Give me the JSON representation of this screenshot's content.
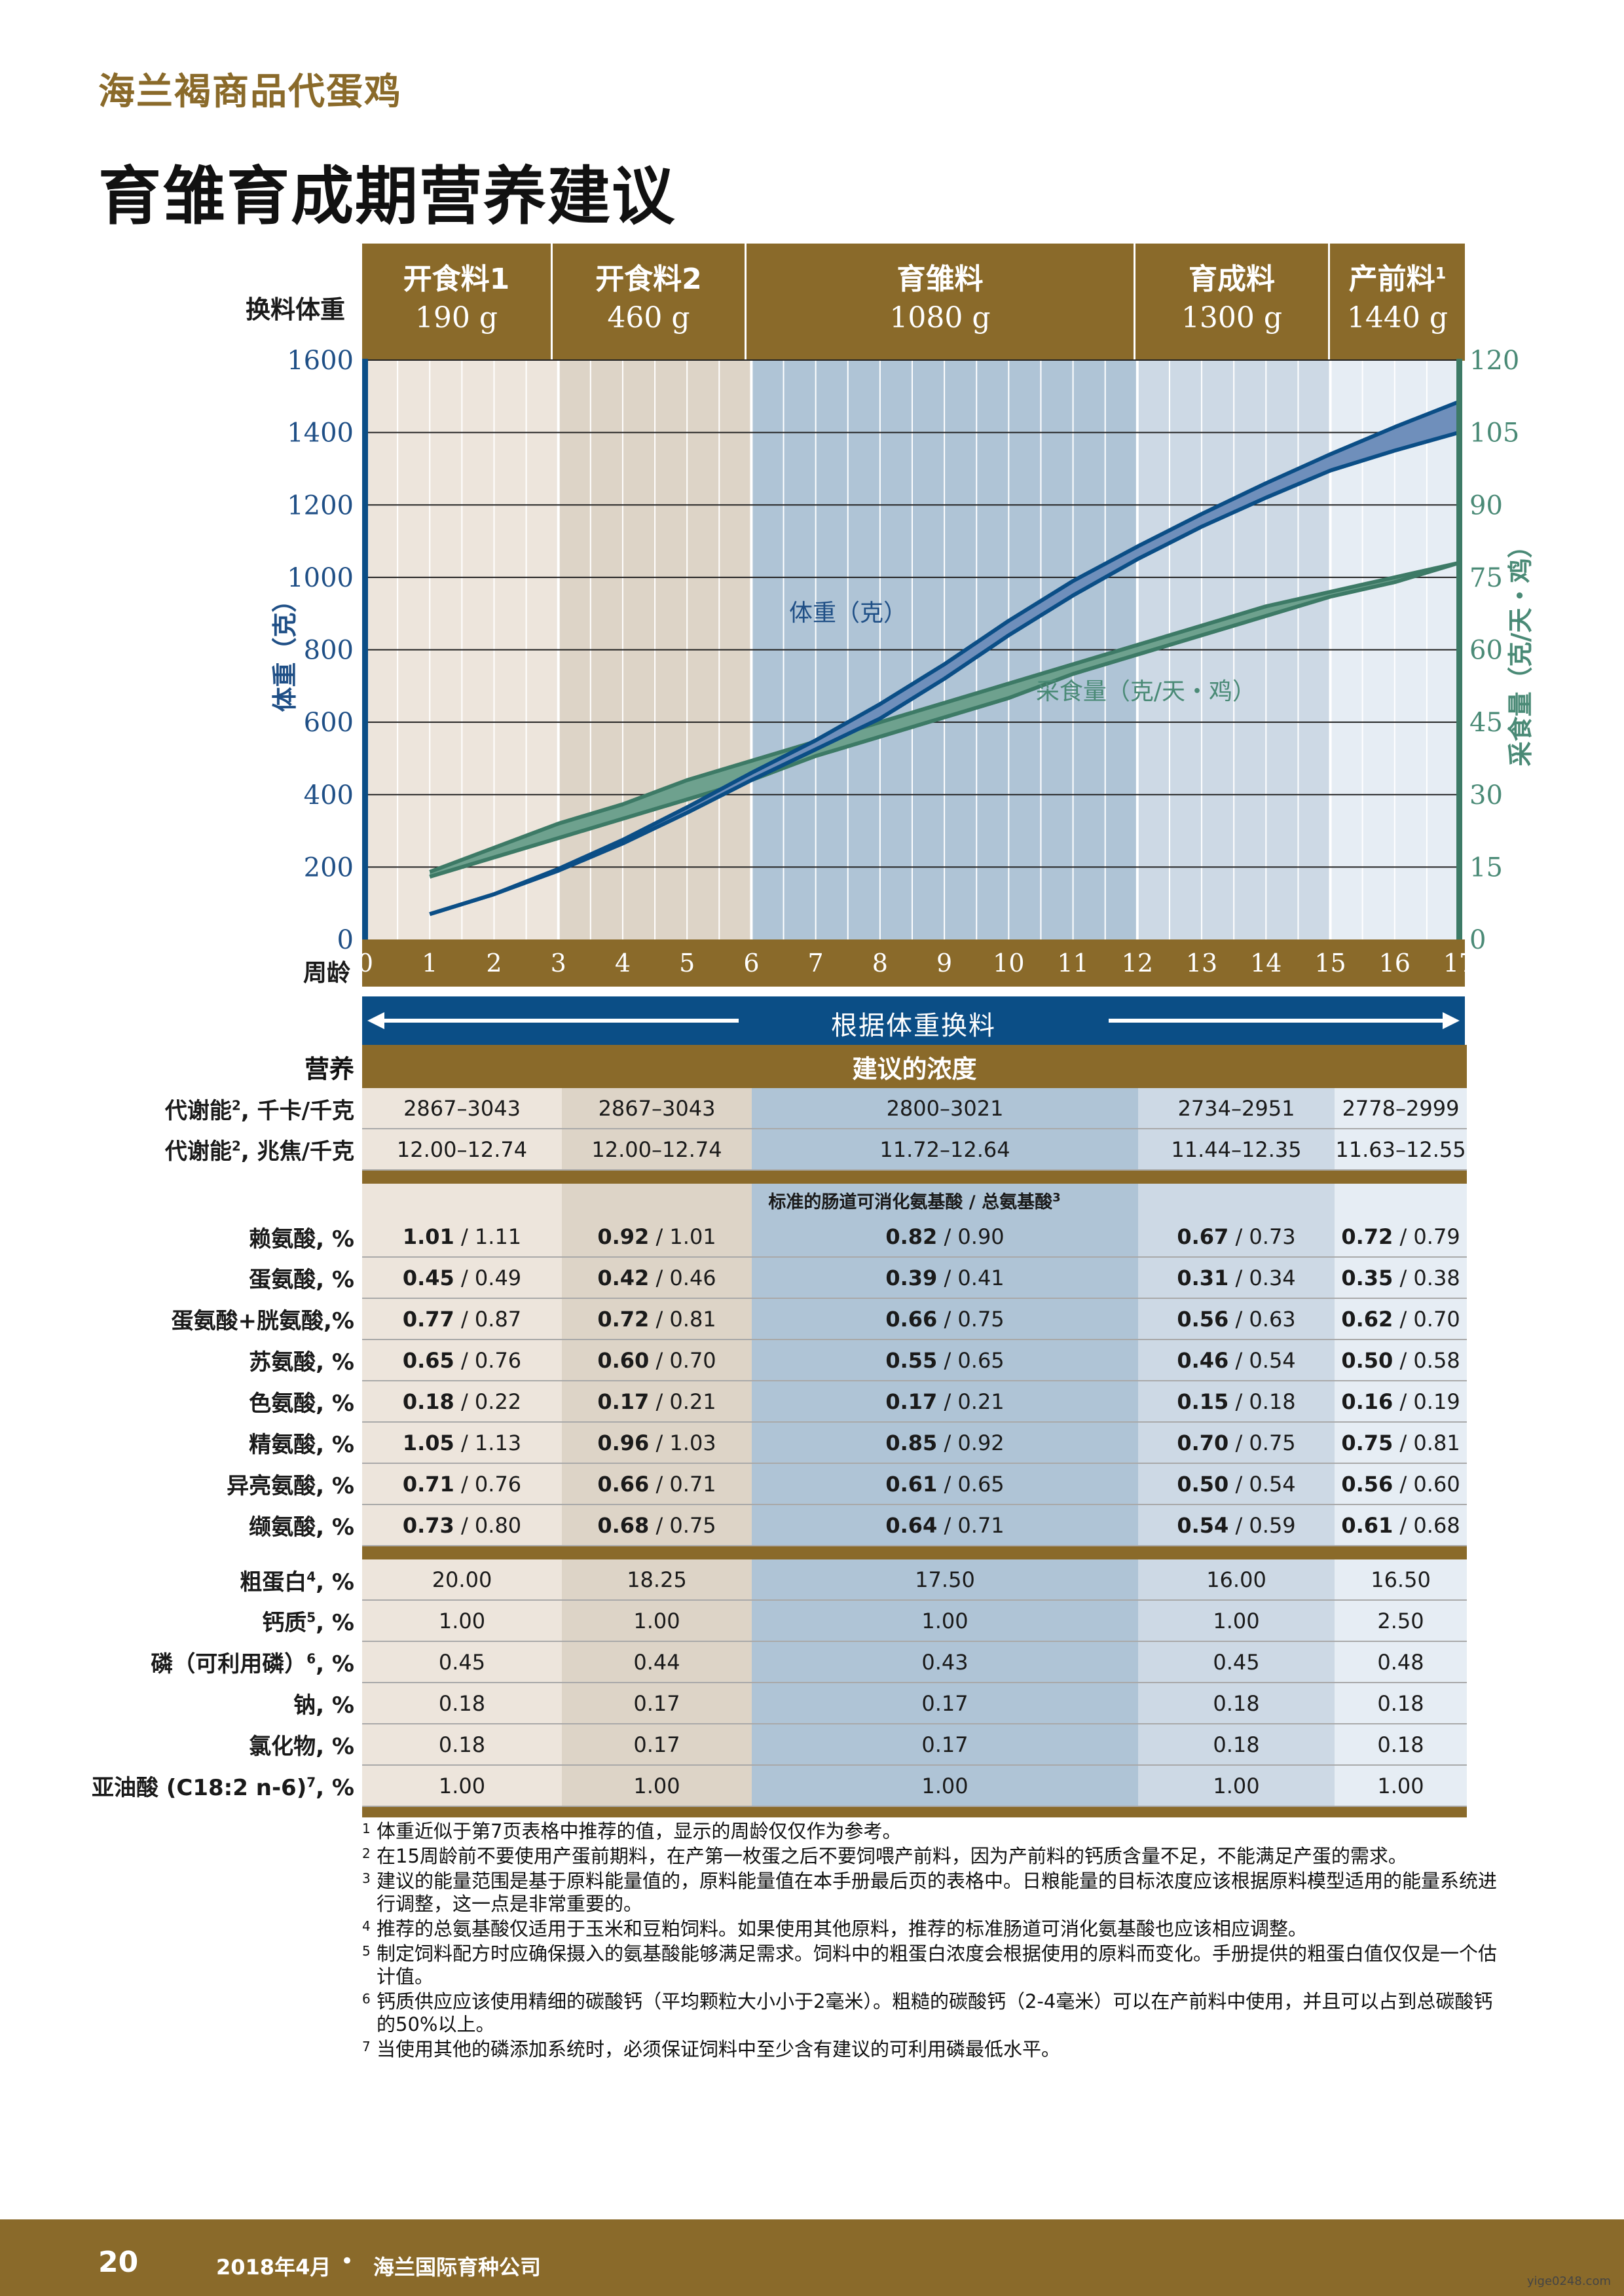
{
  "header": {
    "brand": "海兰褐商品代蛋鸡",
    "title": "育雏育成期营养建议"
  },
  "stages": [
    {
      "name": "开食料1",
      "weight": "190 g"
    },
    {
      "name": "开食料2",
      "weight": "460 g"
    },
    {
      "name": "育雏料",
      "weight": "1080 g"
    },
    {
      "name": "育成料",
      "weight": "1300 g"
    },
    {
      "name": "产前料",
      "sup": "1",
      "weight": "1440 g"
    }
  ],
  "labels": {
    "weight_change": "换料体重",
    "age": "周龄",
    "banner": "根据体重换料",
    "nutrition": "营养",
    "recommended": "建议的浓度",
    "amino_header": "标准的肠道可消化氨基酸 / 总氨基酸",
    "amino_header_sup": "3"
  },
  "chart_data": {
    "type": "line",
    "xlabel": "周龄",
    "x_ticks": [
      0,
      1,
      2,
      3,
      4,
      5,
      6,
      7,
      8,
      9,
      10,
      11,
      12,
      13,
      14,
      15,
      16,
      17
    ],
    "y_left": {
      "label": "体重（克）",
      "ticks": [
        0,
        200,
        400,
        600,
        800,
        1000,
        1200,
        1400,
        1600
      ],
      "range": [
        0,
        1600
      ]
    },
    "y_right": {
      "label": "采食量（克/天・鸡）",
      "ticks": [
        0,
        15,
        30,
        45,
        60,
        75,
        90,
        105,
        120
      ],
      "range": [
        0,
        120
      ]
    },
    "series": [
      {
        "name": "体重（克）",
        "axis": "left",
        "color": "#0b4e86",
        "x": [
          1,
          2,
          3,
          4,
          5,
          6,
          7,
          8,
          9,
          10,
          11,
          12,
          13,
          14,
          15,
          16,
          17
        ],
        "lower": [
          70,
          125,
          190,
          265,
          350,
          440,
          525,
          610,
          720,
          840,
          950,
          1050,
          1140,
          1220,
          1295,
          1350,
          1400
        ],
        "upper": [
          70,
          125,
          195,
          275,
          365,
          460,
          550,
          650,
          760,
          880,
          990,
          1085,
          1175,
          1260,
          1340,
          1415,
          1485
        ]
      },
      {
        "name": "采食量（克/天・鸡）",
        "axis": "right",
        "color": "#3d7a66",
        "x": [
          1,
          2,
          3,
          4,
          5,
          6,
          7,
          8,
          9,
          10,
          11,
          12,
          13,
          14,
          15,
          16,
          17
        ],
        "lower": [
          13,
          17,
          21,
          25,
          29,
          33,
          38,
          42,
          46,
          50,
          55,
          59,
          63,
          67,
          71,
          74,
          78
        ],
        "upper": [
          14,
          19,
          24,
          28,
          33,
          37,
          41,
          45,
          49,
          53,
          57,
          61,
          65,
          69,
          72,
          75,
          78
        ]
      }
    ]
  },
  "table": {
    "groups": [
      {
        "type": "rows",
        "rows": [
          {
            "label": "代谢能",
            "sup": "2",
            "suffix": ", 千卡/千克",
            "values": [
              "2867–3043",
              "2867–3043",
              "2800–3021",
              "2734–2951",
              "2778–2999"
            ]
          },
          {
            "label": "代谢能",
            "sup": "2",
            "suffix": ", 兆焦/千克",
            "values": [
              "12.00–12.74",
              "12.00–12.74",
              "11.72–12.64",
              "11.44–12.35",
              "11.63–12.55"
            ]
          }
        ]
      },
      {
        "type": "sep"
      },
      {
        "type": "subheader"
      },
      {
        "type": "pairs",
        "rows": [
          {
            "label": "赖氨酸, %",
            "bold": [
              "1.01",
              "0.92",
              "0.82",
              "0.67",
              "0.72"
            ],
            "rest": [
              "1.11",
              "1.01",
              "0.90",
              "0.73",
              "0.79"
            ]
          },
          {
            "label": "蛋氨酸, %",
            "bold": [
              "0.45",
              "0.42",
              "0.39",
              "0.31",
              "0.35"
            ],
            "rest": [
              "0.49",
              "0.46",
              "0.41",
              "0.34",
              "0.38"
            ]
          },
          {
            "label": "蛋氨酸+胱氨酸,%",
            "bold": [
              "0.77",
              "0.72",
              "0.66",
              "0.56",
              "0.62"
            ],
            "rest": [
              "0.87",
              "0.81",
              "0.75",
              "0.63",
              "0.70"
            ]
          },
          {
            "label": "苏氨酸, %",
            "bold": [
              "0.65",
              "0.60",
              "0.55",
              "0.46",
              "0.50"
            ],
            "rest": [
              "0.76",
              "0.70",
              "0.65",
              "0.54",
              "0.58"
            ]
          },
          {
            "label": "色氨酸, %",
            "bold": [
              "0.18",
              "0.17",
              "0.17",
              "0.15",
              "0.16"
            ],
            "rest": [
              "0.22",
              "0.21",
              "0.21",
              "0.18",
              "0.19"
            ]
          },
          {
            "label": "精氨酸, %",
            "bold": [
              "1.05",
              "0.96",
              "0.85",
              "0.70",
              "0.75"
            ],
            "rest": [
              "1.13",
              "1.03",
              "0.92",
              "0.75",
              "0.81"
            ]
          },
          {
            "label": "异亮氨酸, %",
            "bold": [
              "0.71",
              "0.66",
              "0.61",
              "0.50",
              "0.56"
            ],
            "rest": [
              "0.76",
              "0.71",
              "0.65",
              "0.54",
              "0.60"
            ]
          },
          {
            "label": "缬氨酸, %",
            "bold": [
              "0.73",
              "0.68",
              "0.64",
              "0.54",
              "0.61"
            ],
            "rest": [
              "0.80",
              "0.75",
              "0.71",
              "0.59",
              "0.68"
            ]
          }
        ]
      },
      {
        "type": "sep"
      },
      {
        "type": "rows",
        "rows": [
          {
            "label": "粗蛋白",
            "sup": "4",
            "suffix": ", %",
            "values": [
              "20.00",
              "18.25",
              "17.50",
              "16.00",
              "16.50"
            ]
          },
          {
            "label": "钙质",
            "sup": "5",
            "suffix": ", %",
            "values": [
              "1.00",
              "1.00",
              "1.00",
              "1.00",
              "2.50"
            ]
          },
          {
            "label": "磷（可利用磷）",
            "sup": "6",
            "suffix": ", %",
            "values": [
              "0.45",
              "0.44",
              "0.43",
              "0.45",
              "0.48"
            ]
          },
          {
            "label": "钠, %",
            "values": [
              "0.18",
              "0.17",
              "0.17",
              "0.18",
              "0.18"
            ]
          },
          {
            "label": "氯化物, %",
            "values": [
              "0.18",
              "0.17",
              "0.17",
              "0.18",
              "0.18"
            ]
          },
          {
            "label": "亚油酸 (C18:2 n-6)",
            "sup": "7",
            "suffix": ", %",
            "values": [
              "1.00",
              "1.00",
              "1.00",
              "1.00",
              "1.00"
            ]
          }
        ]
      },
      {
        "type": "sep",
        "thin": true
      }
    ]
  },
  "footnotes": [
    {
      "n": "1",
      "text": "体重近似于第7页表格中推荐的值，显示的周龄仅仅作为参考。"
    },
    {
      "n": "2",
      "text": "在15周龄前不要使用产蛋前期料，在产第一枚蛋之后不要饲喂产前料，因为产前料的钙质含量不足，不能满足产蛋的需求。"
    },
    {
      "n": "3",
      "text": "建议的能量范围是基于原料能量值的，原料能量值在本手册最后页的表格中。日粮能量的目标浓度应该根据原料模型适用的能量系统进行调整，这一点是非常重要的。"
    },
    {
      "n": "4",
      "text": "推荐的总氨基酸仅适用于玉米和豆粕饲料。如果使用其他原料，推荐的标准肠道可消化氨基酸也应该相应调整。"
    },
    {
      "n": "5",
      "text": "制定饲料配方时应确保摄入的氨基酸能够满足需求。饲料中的粗蛋白浓度会根据使用的原料而变化。手册提供的粗蛋白值仅仅是一个估计值。"
    },
    {
      "n": "6",
      "text": "钙质供应应该使用精细的碳酸钙（平均颗粒大小小于2毫米）。粗糙的碳酸钙（2-4毫米）可以在产前料中使用，并且可以占到总碳酸钙的50%以上。"
    },
    {
      "n": "7",
      "text": "当使用其他的磷添加系统时，必须保证饲料中至少含有建议的可利用磷最低水平。"
    }
  ],
  "footer": {
    "page": "20",
    "date": "2018年4月",
    "dot": "•",
    "company": "海兰国际育种公司"
  },
  "watermark": "yige0248.com",
  "colors": {
    "brown": "#8a6a2a",
    "blue": "#0b4e86",
    "green": "#3d7a66"
  }
}
